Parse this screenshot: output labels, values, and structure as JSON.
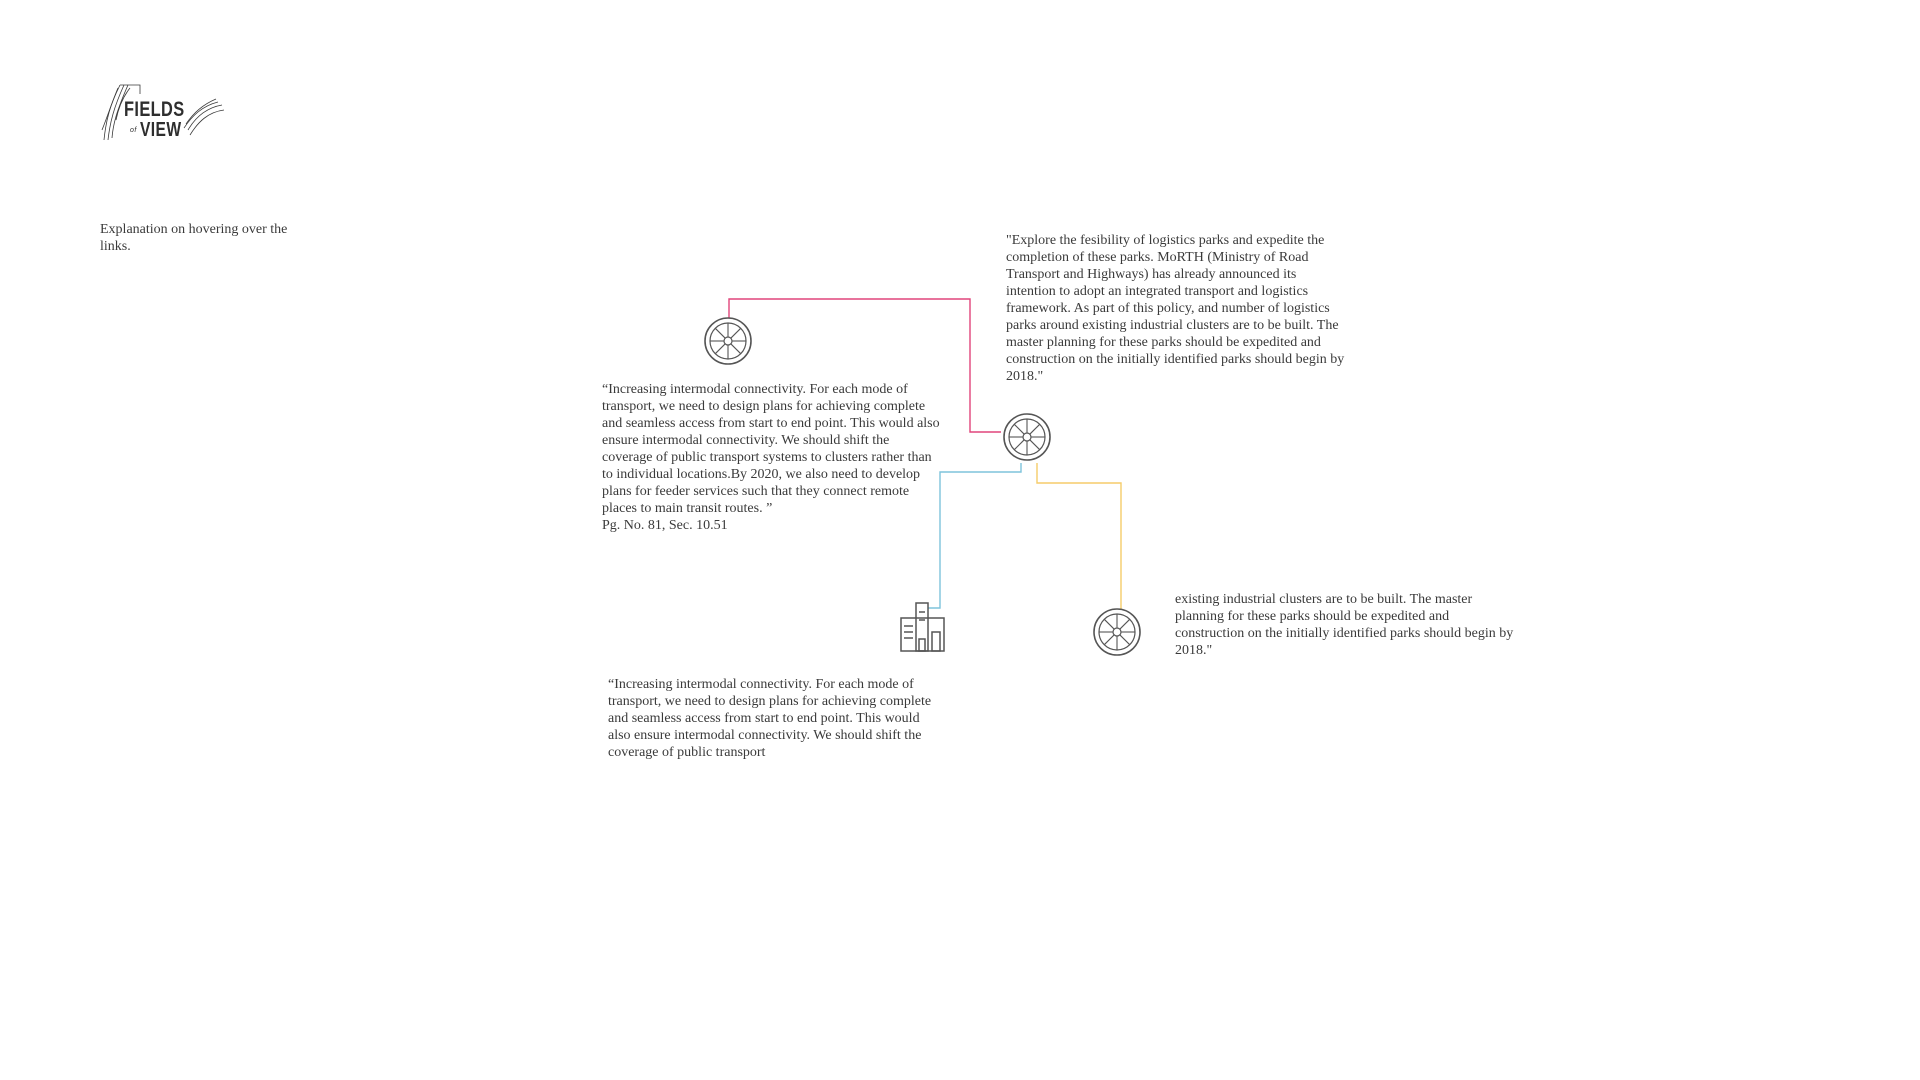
{
  "logo": {
    "line1": "FIELDS",
    "of": "of",
    "line2": "VIEW"
  },
  "explanation": "Explanation on hovering over the links.",
  "quotes": {
    "left": "“Increasing intermodal connectivity. For each mode of transport, we need to design plans for achieving complete and seamless access from start to end point. This would also ensure intermodal connectivity. We should shift the coverage of public transport systems to clusters rather than to individual locations.By 2020, we also need to develop plans for feeder services such that they connect remote places to main transit routes. ”",
    "left_ref": "Pg. No. 81, Sec. 10.51",
    "right": "\"Explore the fesibility of logistics parks and expedite the completion of these parks. MoRTH (Ministry of Road Transport and Highways) has already announced its intention to adopt an integrated transport and logistics framework. As part of this policy, and number of logistics parks around existing industrial clusters are to be built. The master planning for these parks should be expedited and construction on the initially identified parks should begin by 2018.\"",
    "far_right": "existing industrial clusters are to be built. The master planning for these parks should be expedited and construction on the initially identified parks should begin by 2018.\"",
    "bottom": "“Increasing intermodal connectivity. For each mode of transport, we need to design plans for achieving complete and seamless access from start to end point. This would also ensure intermodal connectivity. We should shift the coverage of public transport"
  },
  "nodes": [
    {
      "name": "wheel-top-left",
      "icon": "wheel-icon"
    },
    {
      "name": "wheel-center",
      "icon": "wheel-icon"
    },
    {
      "name": "wheel-right",
      "icon": "wheel-icon"
    },
    {
      "name": "building",
      "icon": "building-icon"
    }
  ],
  "links": [
    {
      "name": "link-pink",
      "color": "#e0457b"
    },
    {
      "name": "link-blue",
      "color": "#7ec3dc"
    },
    {
      "name": "link-yellow",
      "color": "#f5cc6a"
    }
  ],
  "colors": {
    "text": "#3a3a3a",
    "icon": "#555555"
  }
}
